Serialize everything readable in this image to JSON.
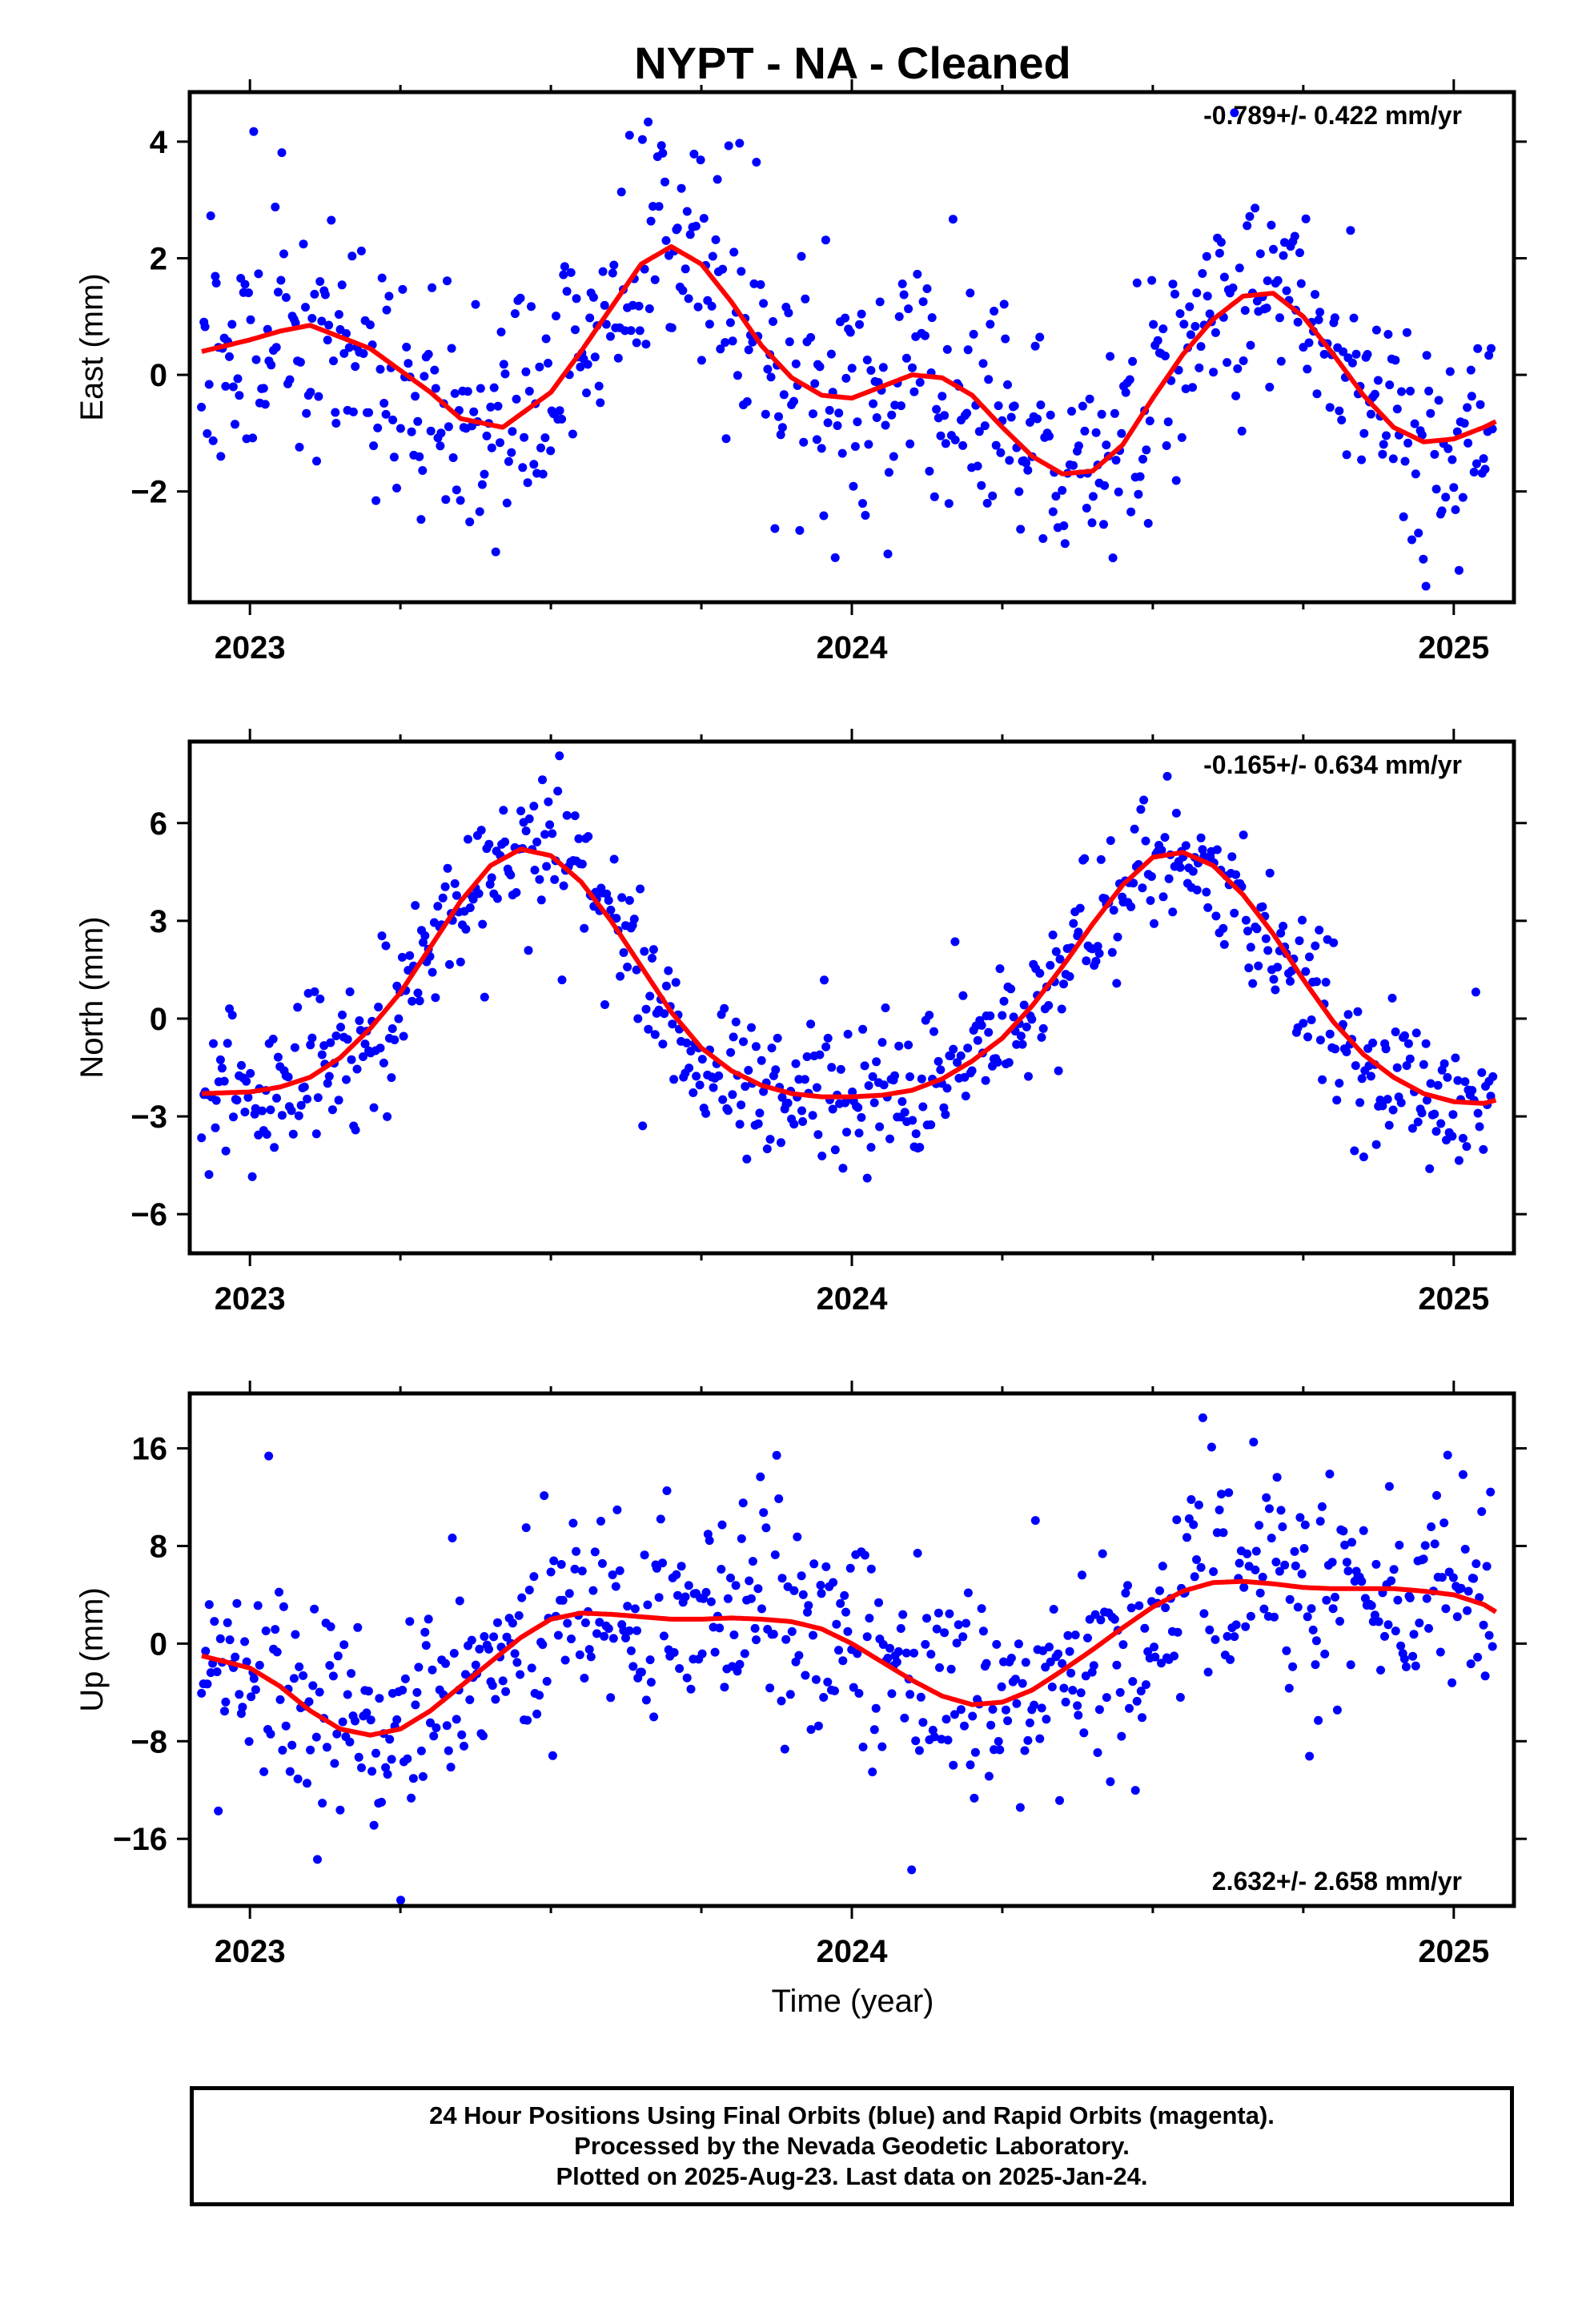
{
  "chart_data": {
    "title": "NYPT  - NA - Cleaned",
    "xlabel": "Time (year)",
    "type": "scatter",
    "colors": {
      "points": "#0000ff",
      "fit": "#ff0000",
      "frame": "#000000"
    },
    "panels": [
      {
        "ylabel": "East (mm)",
        "ylim": [
          -3.9,
          4.85
        ],
        "yticks": [
          4,
          2,
          0,
          -2
        ],
        "ytick_labels": [
          "4",
          "2",
          "0",
          "−2"
        ],
        "rate": "-0.789+/- 0.422 mm/yr",
        "rate_position": "top-right",
        "fit_curve": {
          "x": [
            2022.92,
            2023.0,
            2023.05,
            2023.1,
            2023.2,
            2023.3,
            2023.35,
            2023.42,
            2023.5,
            2023.55,
            2023.6,
            2023.65,
            2023.7,
            2023.75,
            2023.8,
            2023.85,
            2023.9,
            2023.95,
            2024.0,
            2024.05,
            2024.1,
            2024.15,
            2024.2,
            2024.25,
            2024.3,
            2024.35,
            2024.4,
            2024.45,
            2024.5,
            2024.55,
            2024.6,
            2024.65,
            2024.7,
            2024.75,
            2024.8,
            2024.85,
            2024.9,
            2024.95,
            2025.0,
            2025.05,
            2025.07
          ],
          "y": [
            0.4,
            0.6,
            0.75,
            0.85,
            0.45,
            -0.3,
            -0.75,
            -0.9,
            -0.3,
            0.4,
            1.15,
            1.9,
            2.2,
            1.9,
            1.25,
            0.5,
            -0.05,
            -0.35,
            -0.4,
            -0.2,
            0.0,
            -0.05,
            -0.35,
            -0.9,
            -1.4,
            -1.7,
            -1.65,
            -1.2,
            -0.4,
            0.35,
            0.95,
            1.35,
            1.4,
            1.0,
            0.35,
            -0.35,
            -0.9,
            -1.15,
            -1.1,
            -0.9,
            -0.8
          ]
        },
        "scatter": {
          "seed": 11,
          "noise": 1.0,
          "outlier_rate": 0.06,
          "outlier_scale": 2.0
        }
      },
      {
        "ylabel": "North (mm)",
        "ylim": [
          -7.2,
          8.5
        ],
        "yticks": [
          6,
          3,
          0,
          -3,
          -6
        ],
        "ytick_labels": [
          "6",
          "3",
          "0",
          "−3",
          "−6"
        ],
        "rate": "-0.165+/- 0.634 mm/yr",
        "rate_position": "top-right",
        "fit_curve": {
          "x": [
            2022.92,
            2023.0,
            2023.05,
            2023.1,
            2023.15,
            2023.2,
            2023.25,
            2023.3,
            2023.35,
            2023.4,
            2023.45,
            2023.5,
            2023.55,
            2023.6,
            2023.65,
            2023.7,
            2023.75,
            2023.8,
            2023.85,
            2023.9,
            2023.95,
            2024.0,
            2024.05,
            2024.1,
            2024.15,
            2024.2,
            2024.25,
            2024.3,
            2024.35,
            2024.4,
            2024.45,
            2024.5,
            2024.55,
            2024.6,
            2024.65,
            2024.7,
            2024.75,
            2024.8,
            2024.85,
            2024.9,
            2024.95,
            2025.0,
            2025.05,
            2025.07
          ],
          "y": [
            -2.3,
            -2.25,
            -2.1,
            -1.8,
            -1.2,
            -0.3,
            0.8,
            2.2,
            3.6,
            4.7,
            5.2,
            5.0,
            4.2,
            3.0,
            1.6,
            0.2,
            -0.9,
            -1.6,
            -2.05,
            -2.3,
            -2.4,
            -2.4,
            -2.35,
            -2.2,
            -1.85,
            -1.3,
            -0.6,
            0.4,
            1.6,
            2.9,
            4.1,
            4.95,
            5.1,
            4.7,
            3.8,
            2.6,
            1.2,
            -0.1,
            -1.1,
            -1.8,
            -2.3,
            -2.55,
            -2.6,
            -2.5
          ]
        },
        "scatter": {
          "seed": 23,
          "noise": 1.05,
          "outlier_rate": 0.05,
          "outlier_scale": 1.8
        }
      },
      {
        "ylabel": "Up (mm)",
        "ylim": [
          -21.5,
          20.5
        ],
        "yticks": [
          16,
          8,
          0,
          -8,
          -16
        ],
        "ytick_labels": [
          "16",
          "8",
          "0",
          "−8",
          "−16"
        ],
        "rate": "2.632+/- 2.658 mm/yr",
        "rate_position": "bottom-right",
        "fit_curve": {
          "x": [
            2022.92,
            2023.0,
            2023.05,
            2023.1,
            2023.15,
            2023.2,
            2023.25,
            2023.3,
            2023.35,
            2023.4,
            2023.45,
            2023.5,
            2023.55,
            2023.6,
            2023.65,
            2023.7,
            2023.75,
            2023.8,
            2023.85,
            2023.9,
            2023.95,
            2024.0,
            2024.05,
            2024.1,
            2024.15,
            2024.2,
            2024.25,
            2024.3,
            2024.35,
            2024.4,
            2024.45,
            2024.5,
            2024.55,
            2024.6,
            2024.65,
            2024.7,
            2024.75,
            2024.8,
            2024.85,
            2024.9,
            2024.95,
            2025.0,
            2025.05,
            2025.07
          ],
          "y": [
            -1.0,
            -2.0,
            -3.5,
            -5.5,
            -7.0,
            -7.5,
            -7.0,
            -5.5,
            -3.5,
            -1.5,
            0.5,
            2.0,
            2.5,
            2.4,
            2.2,
            2.0,
            2.0,
            2.1,
            2.0,
            1.8,
            1.2,
            0.0,
            -1.5,
            -3.0,
            -4.3,
            -5.0,
            -4.8,
            -3.8,
            -2.2,
            -0.5,
            1.3,
            3.0,
            4.3,
            5.0,
            5.1,
            4.9,
            4.6,
            4.5,
            4.5,
            4.5,
            4.3,
            4.0,
            3.2,
            2.6
          ]
        },
        "scatter": {
          "seed": 37,
          "noise": 4.2,
          "outlier_rate": 0.06,
          "outlier_scale": 2.2
        }
      }
    ],
    "x_range": [
      2022.9,
      2025.1
    ],
    "xticks": [
      2023,
      2024,
      2025
    ],
    "xtick_labels": [
      "2023",
      "2024",
      "2025"
    ],
    "minor_xticks": [
      2023.25,
      2023.5,
      2023.75,
      2024.25,
      2024.5,
      2024.75
    ],
    "point_count_per_panel": 690
  },
  "footer": {
    "line1": "24 Hour Positions Using Final Orbits (blue) and Rapid Orbits (magenta).",
    "line2": "Processed by the Nevada Geodetic Laboratory.",
    "line3": "Plotted on 2025-Aug-23. Last data on 2025-Jan-24."
  }
}
